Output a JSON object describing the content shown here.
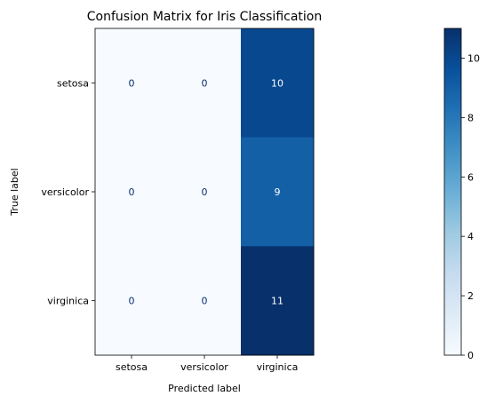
{
  "chart_data": {
    "type": "heatmap",
    "title": "Confusion Matrix for Iris Classification",
    "xlabel": "Predicted label",
    "ylabel": "True label",
    "x_categories": [
      "setosa",
      "versicolor",
      "virginica"
    ],
    "y_categories": [
      "setosa",
      "versicolor",
      "virginica"
    ],
    "values": [
      [
        0,
        0,
        10
      ],
      [
        0,
        0,
        9
      ],
      [
        0,
        0,
        11
      ]
    ],
    "colormap": "Blues",
    "colorbar": {
      "range": [
        0,
        11
      ],
      "ticks": [
        "0",
        "2",
        "4",
        "6",
        "8",
        "10"
      ]
    },
    "colors": {
      "low": "#f7fbff",
      "high": "#08306b",
      "text_dark": "#08306b",
      "text_light": "#ffffff"
    }
  }
}
